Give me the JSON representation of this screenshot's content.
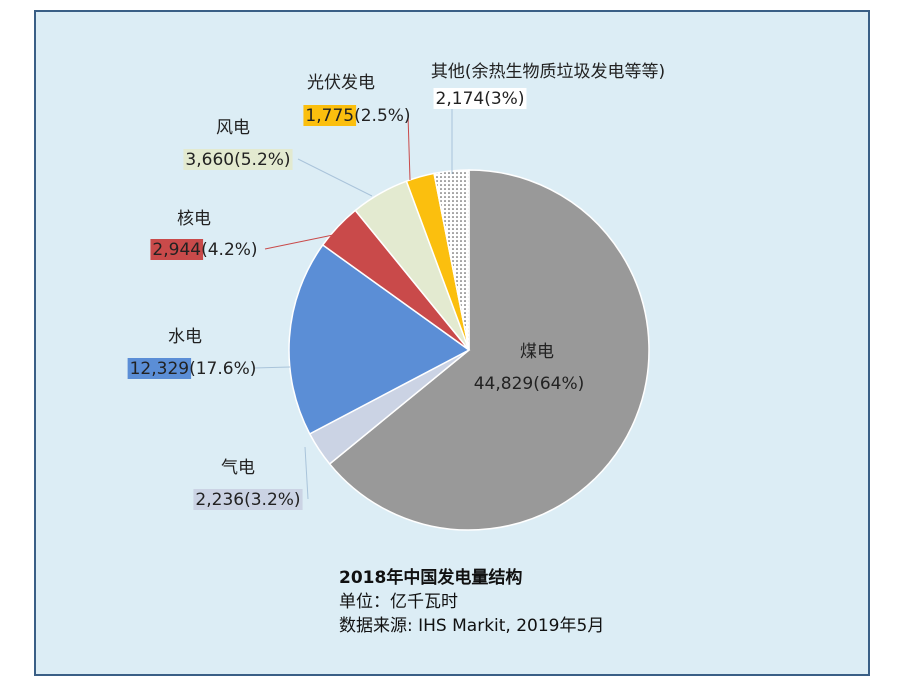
{
  "chart_data": {
    "type": "pie",
    "unit_label": "亿千瓦时",
    "slices": [
      {
        "name": "煤电",
        "value": 44829,
        "value_text": "44,829",
        "pct_text": "(64%)",
        "color": "#999999"
      },
      {
        "name": "气电",
        "value": 2236,
        "value_text": "2,236",
        "pct_text": "(3.2%)",
        "color": "#cbd3e4"
      },
      {
        "name": "水电",
        "value": 12329,
        "value_text": "12,329",
        "pct_text": "(17.6%)",
        "color": "#5b8ed6"
      },
      {
        "name": "核电",
        "value": 2944,
        "value_text": "2,944",
        "pct_text": "(4.2%)",
        "color": "#c94a4a"
      },
      {
        "name": "风电",
        "value": 3660,
        "value_text": "3,660",
        "pct_text": "(5.2%)",
        "color": "#e3ead0"
      },
      {
        "name": "光伏发电",
        "value": 1775,
        "value_text": "1,775",
        "pct_text": "(2.5%)",
        "color": "#fbbf0e"
      },
      {
        "name": "其他(余热生物质垃圾发电等等)",
        "value": 2174,
        "value_text": "2,174",
        "pct_text": "(3%)",
        "color": "#ffffff",
        "pattern": "dotted"
      }
    ]
  },
  "caption": {
    "title": "2018年中国发电量结构",
    "unit": "单位：亿千瓦时",
    "source": "数据来源: IHS Markit, 2019年5月"
  }
}
